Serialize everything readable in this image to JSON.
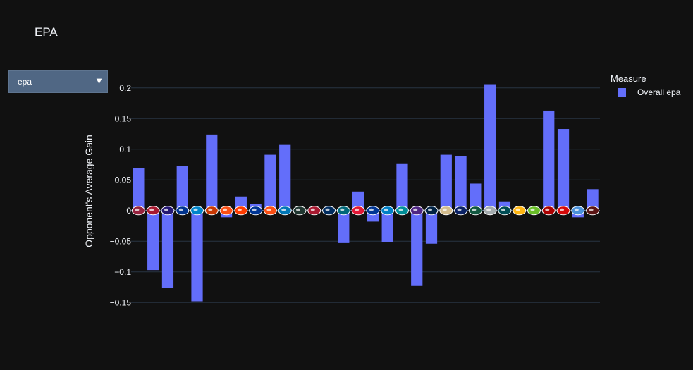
{
  "title": "EPA",
  "dropdown": {
    "selected": "epa",
    "arrow": "▼"
  },
  "legend": {
    "title": "Measure",
    "item_label": "Overall epa"
  },
  "colors": {
    "background": "#111111",
    "bar": "#636efa",
    "grid": "#283442",
    "text": "#f2f5fa",
    "dropdown": "#506784"
  },
  "chart_data": {
    "type": "bar",
    "title": "EPA",
    "xlabel": "",
    "ylabel": "Opponent's Average Gain",
    "ylim": [
      -0.152,
      0.225
    ],
    "yticks": [
      0.2,
      0.15,
      0.1,
      0.05,
      0,
      -0.05,
      -0.1,
      -0.15
    ],
    "ytick_labels": [
      "0.2",
      "0.15",
      "0.1",
      "0.05",
      "0",
      "−0.05",
      "−0.1",
      "−0.15"
    ],
    "grid": true,
    "legend_position": "top-right",
    "x_tick_icons": [
      {
        "name": "cardinals-logo-icon",
        "color": "#97233f"
      },
      {
        "name": "falcons-logo-icon",
        "color": "#a71930"
      },
      {
        "name": "ravens-logo-icon",
        "color": "#241773"
      },
      {
        "name": "bills-logo-icon",
        "color": "#00338d"
      },
      {
        "name": "panthers-logo-icon",
        "color": "#0085ca"
      },
      {
        "name": "bears-logo-icon",
        "color": "#c83803"
      },
      {
        "name": "bengals-logo-icon",
        "color": "#fb4f14"
      },
      {
        "name": "browns-logo-icon",
        "color": "#ff3c00"
      },
      {
        "name": "cowboys-logo-icon",
        "color": "#003594"
      },
      {
        "name": "broncos-logo-icon",
        "color": "#fb4f14"
      },
      {
        "name": "lions-logo-icon",
        "color": "#0076b6"
      },
      {
        "name": "packers-logo-icon",
        "color": "#203731"
      },
      {
        "name": "texans-logo-icon",
        "color": "#a71930"
      },
      {
        "name": "colts-logo-icon",
        "color": "#002c5f"
      },
      {
        "name": "jaguars-logo-icon",
        "color": "#006778"
      },
      {
        "name": "chiefs-logo-icon",
        "color": "#e31837"
      },
      {
        "name": "rams-logo-icon",
        "color": "#003594"
      },
      {
        "name": "chargers-logo-icon",
        "color": "#0080c6"
      },
      {
        "name": "dolphins-logo-icon",
        "color": "#008e97"
      },
      {
        "name": "vikings-logo-icon",
        "color": "#4f2683"
      },
      {
        "name": "patriots-logo-icon",
        "color": "#002244"
      },
      {
        "name": "saints-logo-icon",
        "color": "#d3bc8d"
      },
      {
        "name": "giants-logo-icon",
        "color": "#0b2265"
      },
      {
        "name": "jets-logo-icon",
        "color": "#125740"
      },
      {
        "name": "raiders-logo-icon",
        "color": "#a5acaf"
      },
      {
        "name": "eagles-logo-icon",
        "color": "#004c54"
      },
      {
        "name": "steelers-logo-icon",
        "color": "#ffb612"
      },
      {
        "name": "seahawks-logo-icon",
        "color": "#69be28"
      },
      {
        "name": "49ers-logo-icon",
        "color": "#aa0000"
      },
      {
        "name": "buccaneers-logo-icon",
        "color": "#d50a0a"
      },
      {
        "name": "titans-logo-icon",
        "color": "#4b92db"
      },
      {
        "name": "commanders-logo-icon",
        "color": "#5a1414"
      }
    ],
    "series": [
      {
        "name": "Overall epa",
        "values": [
          0.069,
          -0.097,
          -0.126,
          0.073,
          -0.148,
          0.124,
          -0.011,
          0.023,
          0.011,
          0.091,
          0.107,
          -0.003,
          0.002,
          -0.002,
          -0.053,
          0.031,
          -0.018,
          -0.052,
          0.077,
          -0.123,
          -0.054,
          0.091,
          0.089,
          0.044,
          0.206,
          0.015,
          -0.002,
          0.002,
          0.163,
          0.133,
          -0.011,
          0.035
        ]
      }
    ]
  }
}
